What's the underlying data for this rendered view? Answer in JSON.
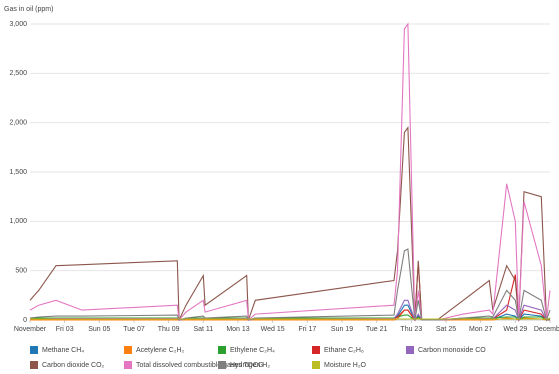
{
  "chart_data": {
    "type": "line",
    "y_label": "Gas in oil (ppm)",
    "x": [
      0,
      0.5,
      1.5,
      3,
      8.5,
      8.6,
      9,
      10,
      10.1,
      12.5,
      12.6,
      13,
      21,
      21.2,
      21.6,
      21.8,
      22.2,
      22.4,
      22.6,
      23.3,
      23.5,
      25,
      26.5,
      26.7,
      27.5,
      28,
      28.2,
      28.5,
      29.5,
      29.8,
      30
    ],
    "xlim": [
      0,
      30
    ],
    "xticks": [
      {
        "value": 0,
        "label": "November"
      },
      {
        "value": 2,
        "label": "Fri 03"
      },
      {
        "value": 4,
        "label": "Sun 05"
      },
      {
        "value": 6,
        "label": "Tue 07"
      },
      {
        "value": 8,
        "label": "Thu 09"
      },
      {
        "value": 10,
        "label": "Sat 11"
      },
      {
        "value": 12,
        "label": "Mon 13"
      },
      {
        "value": 14,
        "label": "Wed 15"
      },
      {
        "value": 16,
        "label": "Fri 17"
      },
      {
        "value": 18,
        "label": "Sun 19"
      },
      {
        "value": 20,
        "label": "Tue 21"
      },
      {
        "value": 22,
        "label": "Thu 23"
      },
      {
        "value": 24,
        "label": "Sat 25"
      },
      {
        "value": 26,
        "label": "Mon 27"
      },
      {
        "value": 28,
        "label": "Wed 29"
      },
      {
        "value": 30,
        "label": "December"
      }
    ],
    "ylim": [
      0,
      3000
    ],
    "yticks": [
      0,
      500,
      {
        "value": 1000,
        "label": "1,000"
      },
      {
        "value": 1500,
        "label": "1,500"
      },
      {
        "value": 2000,
        "label": "2,000"
      },
      {
        "value": 2500,
        "label": "2,500"
      },
      {
        "value": 3000,
        "label": "3,000"
      }
    ],
    "grid": true,
    "series": [
      {
        "name": "Methane CH₄",
        "color": "#1f77b4",
        "values": [
          5,
          5,
          10,
          10,
          10,
          0,
          5,
          10,
          5,
          10,
          0,
          5,
          10,
          40,
          150,
          150,
          0,
          40,
          0,
          0,
          0,
          5,
          10,
          5,
          60,
          40,
          0,
          60,
          40,
          0,
          10
        ]
      },
      {
        "name": "Acetylene C₂H₂",
        "color": "#ff7f0e",
        "values": [
          0,
          0,
          0,
          0,
          0,
          0,
          0,
          0,
          0,
          0,
          0,
          0,
          0,
          10,
          100,
          100,
          0,
          20,
          0,
          0,
          0,
          0,
          0,
          0,
          20,
          10,
          0,
          20,
          10,
          0,
          0
        ]
      },
      {
        "name": "Ethylene C₂H₄",
        "color": "#2ca02c",
        "values": [
          20,
          20,
          20,
          20,
          20,
          0,
          20,
          20,
          20,
          20,
          0,
          20,
          20,
          30,
          50,
          50,
          0,
          30,
          0,
          0,
          0,
          20,
          20,
          20,
          30,
          30,
          0,
          30,
          30,
          0,
          20
        ]
      },
      {
        "name": "Ethane C₂H₆",
        "color": "#d62728",
        "values": [
          10,
          10,
          10,
          10,
          10,
          0,
          10,
          10,
          10,
          10,
          0,
          10,
          10,
          30,
          100,
          100,
          0,
          580,
          0,
          0,
          0,
          10,
          10,
          10,
          100,
          460,
          0,
          100,
          60,
          0,
          10
        ]
      },
      {
        "name": "Carbon monoxide CO",
        "color": "#9467bd",
        "values": [
          10,
          10,
          15,
          15,
          15,
          0,
          10,
          15,
          10,
          15,
          0,
          10,
          15,
          60,
          200,
          200,
          0,
          60,
          0,
          0,
          0,
          10,
          15,
          10,
          150,
          100,
          0,
          150,
          100,
          0,
          15
        ]
      },
      {
        "name": "Carbon dioxide CO₂",
        "color": "#8c564b",
        "values": [
          200,
          300,
          550,
          560,
          600,
          0,
          150,
          450,
          150,
          450,
          0,
          200,
          400,
          700,
          1900,
          1950,
          0,
          600,
          0,
          0,
          0,
          200,
          400,
          100,
          550,
          400,
          0,
          1300,
          1250,
          0,
          0
        ]
      },
      {
        "name": "Total dissolved combustible gases TDCG",
        "color": "#e377c2",
        "values": [
          100,
          150,
          200,
          100,
          150,
          0,
          80,
          200,
          80,
          200,
          0,
          60,
          150,
          500,
          2950,
          3000,
          0,
          300,
          0,
          0,
          0,
          60,
          100,
          60,
          1380,
          1000,
          0,
          1200,
          550,
          0,
          300
        ]
      },
      {
        "name": "Hydrogen H₂",
        "color": "#7f7f7f",
        "values": [
          20,
          30,
          40,
          40,
          50,
          0,
          20,
          40,
          20,
          40,
          0,
          20,
          50,
          300,
          700,
          720,
          0,
          200,
          0,
          0,
          0,
          20,
          40,
          30,
          300,
          200,
          0,
          300,
          200,
          0,
          100
        ]
      },
      {
        "name": "Moisture H₂O",
        "color": "#bcbd22",
        "values": [
          10,
          10,
          10,
          10,
          10,
          10,
          10,
          10,
          10,
          10,
          10,
          10,
          10,
          10,
          10,
          10,
          10,
          10,
          10,
          10,
          10,
          10,
          10,
          10,
          10,
          10,
          10,
          10,
          10,
          10,
          10
        ]
      }
    ]
  }
}
